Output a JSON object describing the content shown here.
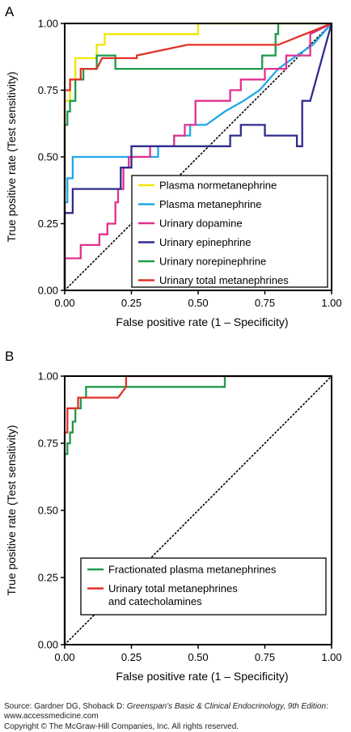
{
  "chart_data": [
    {
      "type": "line",
      "panel_label": "A",
      "xlabel": "False positive rate (1 – Specificity)",
      "ylabel": "True positive rate (Test sensitivity)",
      "xlim": [
        0,
        1
      ],
      "ylim": [
        0,
        1
      ],
      "xticks": [
        "0.00",
        "0.25",
        "0.50",
        "0.75",
        "1.00"
      ],
      "yticks": [
        "0.00",
        "0.25",
        "0.50",
        "0.75",
        "1.00"
      ],
      "reference_line": "diagonal dotted",
      "legend_position": "bottom-right",
      "series": [
        {
          "name": "Plasma normetanephrine",
          "color": "#f2e600",
          "points": [
            [
              0,
              0
            ],
            [
              0,
              0.71
            ],
            [
              0.02,
              0.71
            ],
            [
              0.02,
              0.79
            ],
            [
              0.04,
              0.79
            ],
            [
              0.04,
              0.87
            ],
            [
              0.12,
              0.87
            ],
            [
              0.12,
              0.92
            ],
            [
              0.15,
              0.92
            ],
            [
              0.15,
              0.96
            ],
            [
              0.5,
              0.96
            ],
            [
              0.5,
              1.0
            ],
            [
              1.0,
              1.0
            ]
          ]
        },
        {
          "name": "Plasma metanephrine",
          "color": "#1fa8e8",
          "points": [
            [
              0,
              0
            ],
            [
              0,
              0.33
            ],
            [
              0.01,
              0.33
            ],
            [
              0.01,
              0.42
            ],
            [
              0.03,
              0.42
            ],
            [
              0.03,
              0.5
            ],
            [
              0.35,
              0.5
            ],
            [
              0.35,
              0.54
            ],
            [
              0.41,
              0.54
            ],
            [
              0.41,
              0.58
            ],
            [
              0.47,
              0.58
            ],
            [
              0.47,
              0.62
            ],
            [
              0.53,
              0.62
            ],
            [
              0.6,
              0.67
            ],
            [
              0.67,
              0.71
            ],
            [
              0.73,
              0.75
            ],
            [
              0.8,
              0.83
            ],
            [
              0.87,
              0.88
            ],
            [
              0.93,
              0.92
            ],
            [
              1.0,
              1.0
            ]
          ]
        },
        {
          "name": "Urinary dopamine",
          "color": "#e0318f",
          "points": [
            [
              0,
              0
            ],
            [
              0,
              0.12
            ],
            [
              0.06,
              0.12
            ],
            [
              0.06,
              0.17
            ],
            [
              0.13,
              0.17
            ],
            [
              0.13,
              0.21
            ],
            [
              0.16,
              0.21
            ],
            [
              0.16,
              0.25
            ],
            [
              0.19,
              0.25
            ],
            [
              0.19,
              0.33
            ],
            [
              0.2,
              0.33
            ],
            [
              0.2,
              0.38
            ],
            [
              0.22,
              0.38
            ],
            [
              0.22,
              0.46
            ],
            [
              0.24,
              0.46
            ],
            [
              0.24,
              0.5
            ],
            [
              0.32,
              0.5
            ],
            [
              0.32,
              0.54
            ],
            [
              0.41,
              0.54
            ],
            [
              0.41,
              0.58
            ],
            [
              0.45,
              0.58
            ],
            [
              0.45,
              0.62
            ],
            [
              0.49,
              0.62
            ],
            [
              0.49,
              0.71
            ],
            [
              0.62,
              0.71
            ],
            [
              0.62,
              0.75
            ],
            [
              0.66,
              0.75
            ],
            [
              0.66,
              0.79
            ],
            [
              0.75,
              0.79
            ],
            [
              0.75,
              0.83
            ],
            [
              0.83,
              0.83
            ],
            [
              0.83,
              0.88
            ],
            [
              0.92,
              0.88
            ],
            [
              0.92,
              0.96
            ],
            [
              1.0,
              1.0
            ]
          ]
        },
        {
          "name": "Urinary epinephrine",
          "color": "#2e2d8c",
          "points": [
            [
              0,
              0
            ],
            [
              0,
              0.29
            ],
            [
              0.03,
              0.29
            ],
            [
              0.03,
              0.38
            ],
            [
              0.21,
              0.38
            ],
            [
              0.21,
              0.46
            ],
            [
              0.25,
              0.46
            ],
            [
              0.25,
              0.54
            ],
            [
              0.62,
              0.54
            ],
            [
              0.62,
              0.58
            ],
            [
              0.66,
              0.58
            ],
            [
              0.66,
              0.62
            ],
            [
              0.75,
              0.62
            ],
            [
              0.75,
              0.58
            ],
            [
              0.87,
              0.58
            ],
            [
              0.87,
              0.54
            ],
            [
              0.89,
              0.54
            ],
            [
              0.89,
              0.71
            ],
            [
              0.92,
              0.71
            ],
            [
              1.0,
              1.0
            ]
          ]
        },
        {
          "name": "Urinary norepinephrine",
          "color": "#1f9a49",
          "points": [
            [
              0,
              0
            ],
            [
              0,
              0.62
            ],
            [
              0.01,
              0.62
            ],
            [
              0.01,
              0.67
            ],
            [
              0.02,
              0.67
            ],
            [
              0.02,
              0.71
            ],
            [
              0.04,
              0.71
            ],
            [
              0.04,
              0.79
            ],
            [
              0.07,
              0.79
            ],
            [
              0.07,
              0.83
            ],
            [
              0.12,
              0.83
            ],
            [
              0.12,
              0.88
            ],
            [
              0.19,
              0.88
            ],
            [
              0.19,
              0.83
            ],
            [
              0.74,
              0.83
            ],
            [
              0.74,
              0.88
            ],
            [
              0.79,
              0.88
            ],
            [
              0.79,
              0.96
            ],
            [
              0.8,
              0.96
            ],
            [
              0.8,
              1.0
            ],
            [
              1.0,
              1.0
            ]
          ]
        },
        {
          "name": "Urinary total metanephrines",
          "color": "#e1322a",
          "points": [
            [
              0,
              0
            ],
            [
              0,
              0.75
            ],
            [
              0.02,
              0.75
            ],
            [
              0.02,
              0.79
            ],
            [
              0.06,
              0.79
            ],
            [
              0.06,
              0.83
            ],
            [
              0.12,
              0.83
            ],
            [
              0.14,
              0.87
            ],
            [
              0.27,
              0.87
            ],
            [
              0.27,
              0.88
            ],
            [
              0.46,
              0.92
            ],
            [
              0.73,
              0.92
            ],
            [
              0.8,
              0.92
            ],
            [
              0.9,
              0.96
            ],
            [
              1.0,
              1.0
            ]
          ]
        }
      ]
    },
    {
      "type": "line",
      "panel_label": "B",
      "xlabel": "False positive rate (1 – Specificity)",
      "ylabel": "True positive rate (Test sensitivity)",
      "xlim": [
        0,
        1
      ],
      "ylim": [
        0,
        1
      ],
      "xticks": [
        "0.00",
        "0.25",
        "0.50",
        "0.75",
        "1.00"
      ],
      "yticks": [
        "0.00",
        "0.25",
        "0.50",
        "0.75",
        "1.00"
      ],
      "reference_line": "diagonal dotted",
      "legend_position": "bottom-right",
      "series": [
        {
          "name": "Fractionated plasma metanephrines",
          "color": "#1f9a49",
          "points": [
            [
              0,
              0
            ],
            [
              0,
              0.71
            ],
            [
              0.01,
              0.71
            ],
            [
              0.01,
              0.75
            ],
            [
              0.02,
              0.75
            ],
            [
              0.02,
              0.79
            ],
            [
              0.03,
              0.79
            ],
            [
              0.03,
              0.83
            ],
            [
              0.04,
              0.83
            ],
            [
              0.04,
              0.88
            ],
            [
              0.06,
              0.88
            ],
            [
              0.06,
              0.92
            ],
            [
              0.08,
              0.92
            ],
            [
              0.08,
              0.96
            ],
            [
              0.6,
              0.96
            ],
            [
              0.6,
              1.0
            ],
            [
              1.0,
              1.0
            ]
          ]
        },
        {
          "name": "Urinary total metanephrines\nand catecholamines",
          "color": "#e1322a",
          "points": [
            [
              0,
              0
            ],
            [
              0,
              0.79
            ],
            [
              0.01,
              0.79
            ],
            [
              0.01,
              0.88
            ],
            [
              0.05,
              0.88
            ],
            [
              0.05,
              0.92
            ],
            [
              0.2,
              0.92
            ],
            [
              0.23,
              0.96
            ],
            [
              0.23,
              1.0
            ],
            [
              1.0,
              1.0
            ]
          ]
        }
      ]
    }
  ],
  "footer": {
    "source_prefix": "Source: Gardner DG, Shoback D: ",
    "source_title": "Greenspan's Basic & Clinical Endocrinology, 9th Edition",
    "source_suffix": ": www.accessmedicine.com",
    "copyright": "Copyright © The McGraw-Hill Companies, Inc. All rights reserved."
  }
}
